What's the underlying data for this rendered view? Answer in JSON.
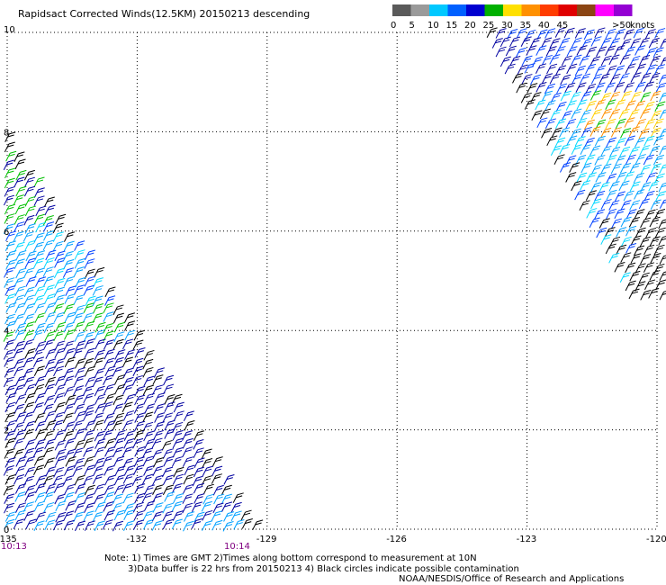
{
  "title": "Rapidsact Corrected Winds(12.5KM) 20150213 descending",
  "map": {
    "lat_min": 0,
    "lat_max": 10,
    "lon_min": -135,
    "lon_max": -120,
    "lat_labels": [
      "10",
      "8",
      "6",
      "4",
      "2",
      "0"
    ],
    "lon_labels": [
      "-135",
      "-132",
      "-129",
      "-126",
      "-123",
      "-120"
    ],
    "time_labels": [
      "10:13",
      "10:14"
    ],
    "grid": "dotted"
  },
  "legend": {
    "bins": [
      {
        "label": "0",
        "color": "#5a5a5a"
      },
      {
        "label": "5",
        "color": "#9a9a9a"
      },
      {
        "label": "10",
        "color": "#00c8ff"
      },
      {
        "label": "15",
        "color": "#0060ff"
      },
      {
        "label": "20",
        "color": "#0000d0"
      },
      {
        "label": "25",
        "color": "#00b000"
      },
      {
        "label": "30",
        "color": "#ffe000"
      },
      {
        "label": "35",
        "color": "#ff9000"
      },
      {
        "label": "40",
        "color": "#ff3c00"
      },
      {
        "label": "45",
        "color": "#e00000"
      },
      {
        "label": "",
        "color": "#8b4513"
      },
      {
        "label": "",
        "color": "#ff00ff"
      },
      {
        "label": ">50",
        "color": "#9400d3"
      }
    ],
    "unit": "knots"
  },
  "notes": {
    "line1": "Note: 1) Times are GMT 2)Times along bottom correspond to measurement at 10N",
    "line2": "3)Data buffer is 22 hrs from 20150213 4) Black circles indicate possible contamination",
    "line3": "NOAA/NESDIS/Office of Research and Applications"
  },
  "colors": {
    "grid": "#000000",
    "time_label": "#800080",
    "wind_black": "#000000",
    "wind_darkblue": "#0000a0",
    "wind_blue": "#0040ff",
    "wind_lightblue": "#00a0ff",
    "wind_cyan": "#00d8ff",
    "wind_green": "#00c000",
    "wind_yellow": "#ffd000",
    "wind_orange": "#ff9000"
  }
}
